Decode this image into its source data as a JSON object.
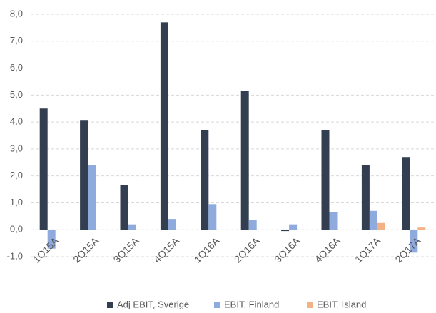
{
  "chart_data": {
    "type": "bar",
    "categories": [
      "1Q15A",
      "2Q15A",
      "3Q15A",
      "4Q15A",
      "1Q16A",
      "2Q16A",
      "3Q16A",
      "4Q16A",
      "1Q17A",
      "2Q17A"
    ],
    "series": [
      {
        "name": "Adj EBIT, Sverige",
        "color": "#333f50",
        "values": [
          4.5,
          4.05,
          1.65,
          7.7,
          3.7,
          5.15,
          -0.05,
          3.7,
          2.4,
          2.7
        ]
      },
      {
        "name": "EBIT, Finland",
        "color": "#8faadc",
        "values": [
          -0.7,
          2.4,
          0.2,
          0.4,
          0.95,
          0.35,
          0.2,
          0.65,
          0.7,
          -0.85
        ]
      },
      {
        "name": "EBIT, Island",
        "color": "#f4b183",
        "values": [
          0,
          0,
          0,
          0,
          0,
          0,
          0,
          0,
          0.25,
          0.08
        ]
      }
    ],
    "ylim": [
      -1,
      8
    ],
    "yticks": [
      {
        "value": -1,
        "label": "-1,0"
      },
      {
        "value": 0,
        "label": "0,0"
      },
      {
        "value": 1,
        "label": "1,0"
      },
      {
        "value": 2,
        "label": "2,0"
      },
      {
        "value": 3,
        "label": "3,0"
      },
      {
        "value": 4,
        "label": "4,0"
      },
      {
        "value": 5,
        "label": "5,0"
      },
      {
        "value": 6,
        "label": "6,0"
      },
      {
        "value": 7,
        "label": "7,0"
      },
      {
        "value": 8,
        "label": "8,0"
      }
    ],
    "grid": true,
    "legend": "bottom"
  }
}
